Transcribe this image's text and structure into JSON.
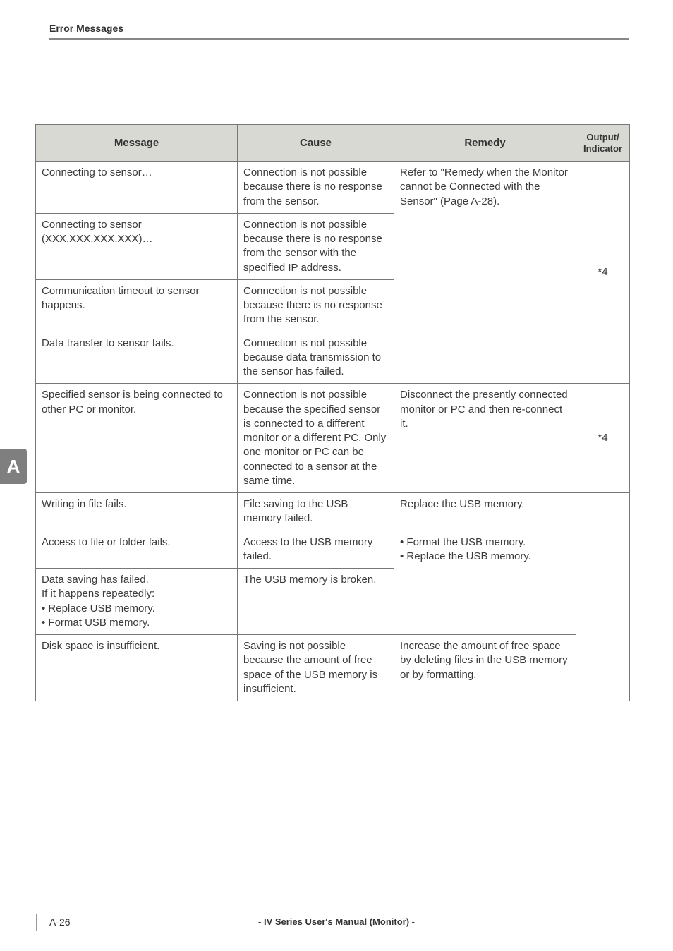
{
  "header": {
    "section_title": "Error Messages"
  },
  "side_tab": {
    "label": "A"
  },
  "footer": {
    "page": "A-26",
    "title": "- IV Series User's Manual (Monitor) -"
  },
  "table": {
    "headers": {
      "message": "Message",
      "cause": "Cause",
      "remedy": "Remedy",
      "output": "Output/\nIndicator"
    },
    "rows": {
      "r1": {
        "message": "Connecting to sensor…",
        "cause": "Connection is not possible because there is no response from the sensor.",
        "remedy": "Refer to \"Remedy when the Monitor cannot be Connected with the Sensor\" (Page A-28).",
        "output": "*4"
      },
      "r2": {
        "message": "Connecting to sensor (XXX.XXX.XXX.XXX)…",
        "cause": "Connection is not possible because there is no response from the sensor with the specified IP address."
      },
      "r3": {
        "message": "Communication timeout to sensor happens.",
        "cause": "Connection is not possible because there is no response from the sensor."
      },
      "r4": {
        "message": "Data transfer to sensor fails.",
        "cause": "Connection is not possible because data transmission to the sensor has failed."
      },
      "r5": {
        "message": "Specified sensor is being connected to other PC or monitor.",
        "cause": "Connection is not possible because the specified sensor is connected to a different monitor or a different PC. Only one monitor or PC can be connected to a sensor at the same time.",
        "remedy": "Disconnect the presently connected monitor or PC and then re-connect it.",
        "output": "*4"
      },
      "r6": {
        "message": "Writing in file fails.",
        "cause": "File saving to the USB memory failed.",
        "remedy": "Replace the USB memory.",
        "output": ""
      },
      "r7": {
        "message": "Access to file or folder fails.",
        "cause": "Access to the USB memory failed.",
        "remedy_lines": {
          "l1": "• Format the USB memory.",
          "l2": "• Replace the USB memory."
        },
        "output": ""
      },
      "r8": {
        "message_lines": {
          "l1": "Data saving has failed.",
          "l2": "If it happens repeatedly:",
          "l3": "• Replace USB memory.",
          "l4": "• Format USB memory."
        },
        "cause": "The USB memory is broken."
      },
      "r9": {
        "message": "Disk space is insufficient.",
        "cause": "Saving is not possible because the amount of free space of the USB memory is insufficient.",
        "remedy": "Increase the amount of free space by deleting files in the USB memory or by formatting.",
        "output": ""
      }
    }
  }
}
